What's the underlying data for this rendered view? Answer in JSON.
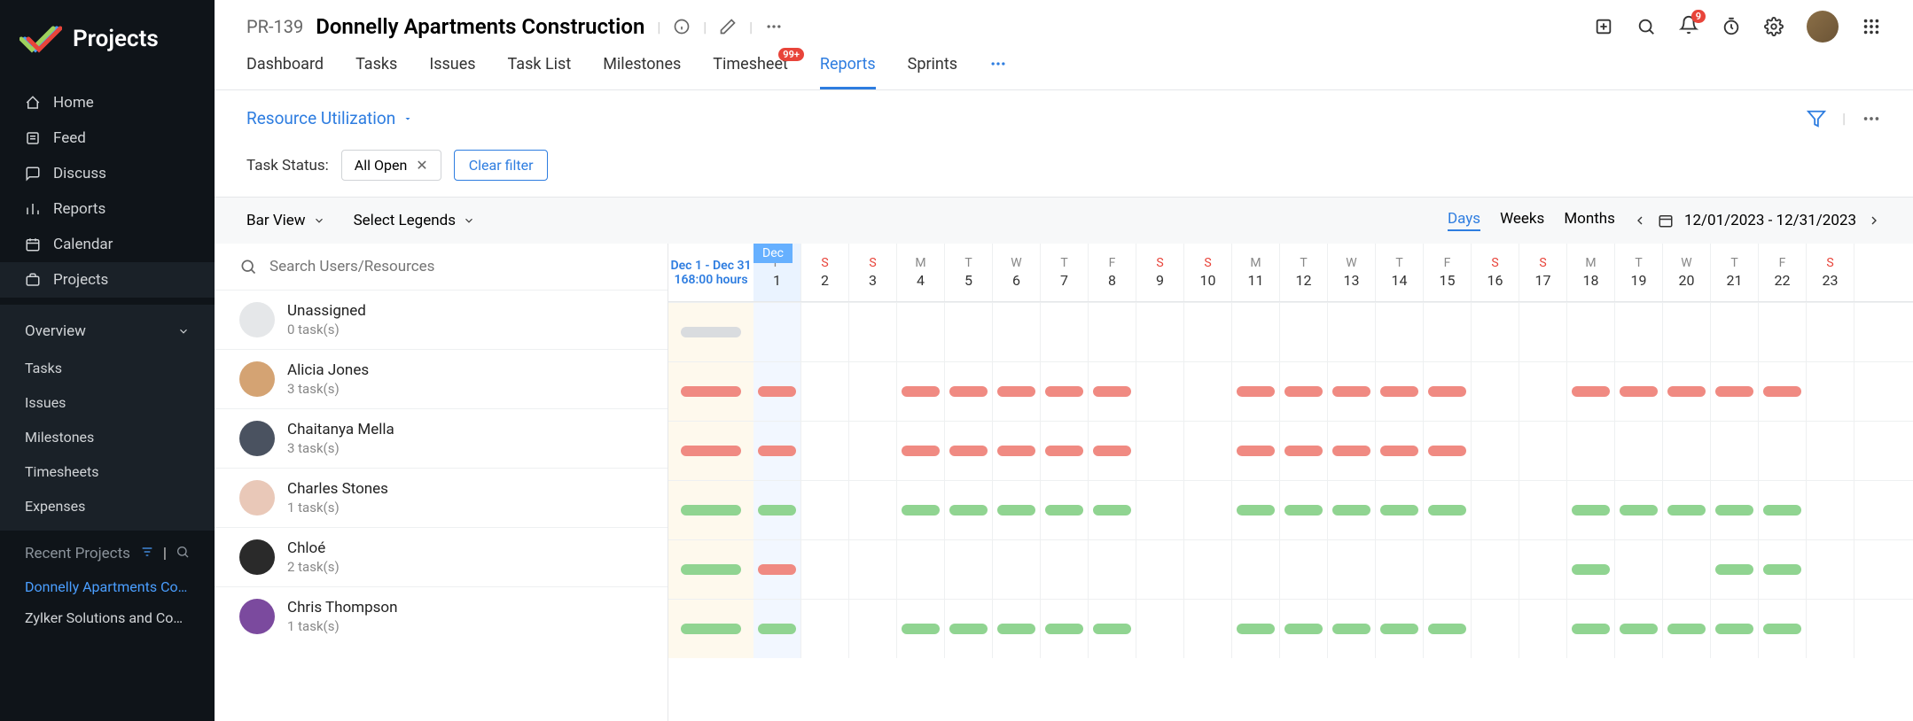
{
  "app": {
    "name": "Projects"
  },
  "sidebar": {
    "items": [
      {
        "label": "Home"
      },
      {
        "label": "Feed"
      },
      {
        "label": "Discuss"
      },
      {
        "label": "Reports"
      },
      {
        "label": "Calendar"
      },
      {
        "label": "Projects"
      }
    ],
    "overview": {
      "label": "Overview",
      "items": [
        {
          "label": "Tasks"
        },
        {
          "label": "Issues"
        },
        {
          "label": "Milestones"
        },
        {
          "label": "Timesheets"
        },
        {
          "label": "Expenses"
        }
      ]
    },
    "recent": {
      "label": "Recent Projects",
      "items": [
        {
          "label": "Donnelly Apartments Cons",
          "active": true
        },
        {
          "label": "Zylker Solutions and Constr",
          "active": false
        }
      ]
    }
  },
  "header": {
    "project_code": "PR-139",
    "project_title": "Donnelly Apartments Construction",
    "notification_count": "9"
  },
  "tabs": [
    {
      "label": "Dashboard"
    },
    {
      "label": "Tasks"
    },
    {
      "label": "Issues"
    },
    {
      "label": "Task List"
    },
    {
      "label": "Milestones"
    },
    {
      "label": "Timesheet",
      "badge": "99+"
    },
    {
      "label": "Reports",
      "active": true
    },
    {
      "label": "Sprints"
    }
  ],
  "report": {
    "selector_label": "Resource Utilization"
  },
  "filter": {
    "label": "Task Status:",
    "chip": "All Open",
    "clear_label": "Clear filter"
  },
  "toolbar": {
    "bar_view": "Bar View",
    "legends": "Select Legends",
    "view_options": [
      "Days",
      "Weeks",
      "Months"
    ],
    "date_range": "12/01/2023  -  12/31/2023"
  },
  "search": {
    "placeholder": "Search Users/Resources"
  },
  "summary": {
    "range": "Dec 1 - Dec 31",
    "hours": "168:00 hours",
    "month": "Dec"
  },
  "calendar": {
    "days": [
      {
        "dow": "F",
        "num": "1",
        "weekend": false,
        "today": true
      },
      {
        "dow": "S",
        "num": "2",
        "weekend": true
      },
      {
        "dow": "S",
        "num": "3",
        "weekend": true
      },
      {
        "dow": "M",
        "num": "4"
      },
      {
        "dow": "T",
        "num": "5"
      },
      {
        "dow": "W",
        "num": "6"
      },
      {
        "dow": "T",
        "num": "7"
      },
      {
        "dow": "F",
        "num": "8"
      },
      {
        "dow": "S",
        "num": "9",
        "weekend": true
      },
      {
        "dow": "S",
        "num": "10",
        "weekend": true
      },
      {
        "dow": "M",
        "num": "11"
      },
      {
        "dow": "T",
        "num": "12"
      },
      {
        "dow": "W",
        "num": "13"
      },
      {
        "dow": "T",
        "num": "14"
      },
      {
        "dow": "F",
        "num": "15"
      },
      {
        "dow": "S",
        "num": "16",
        "weekend": true
      },
      {
        "dow": "S",
        "num": "17",
        "weekend": true
      },
      {
        "dow": "M",
        "num": "18"
      },
      {
        "dow": "T",
        "num": "19"
      },
      {
        "dow": "W",
        "num": "20"
      },
      {
        "dow": "T",
        "num": "21"
      },
      {
        "dow": "F",
        "num": "22"
      },
      {
        "dow": "S",
        "num": "23",
        "weekend": true
      }
    ]
  },
  "resources": [
    {
      "name": "Unassigned",
      "count": "0 task(s)",
      "avatar_color": "#e5e7e9",
      "summary_bar": "gray",
      "bars": [
        "",
        "",
        "",
        "",
        "",
        "",
        "",
        "",
        "",
        "",
        "",
        "",
        "",
        "",
        "",
        "",
        "",
        "",
        "",
        "",
        "",
        "",
        ""
      ]
    },
    {
      "name": "Alicia Jones",
      "count": "3 task(s)",
      "avatar_color": "#d4a373",
      "summary_bar": "red",
      "bars": [
        "red",
        "",
        "",
        "red",
        "red",
        "red",
        "red",
        "red",
        "",
        "",
        "red",
        "red",
        "red",
        "red",
        "red",
        "",
        "",
        "red",
        "red",
        "red",
        "red",
        "red",
        ""
      ]
    },
    {
      "name": "Chaitanya Mella",
      "count": "3 task(s)",
      "avatar_color": "#4a5260",
      "summary_bar": "red",
      "bars": [
        "red",
        "",
        "",
        "red",
        "red",
        "red",
        "red",
        "red",
        "",
        "",
        "red",
        "red",
        "red",
        "red",
        "red",
        "",
        "",
        "",
        "",
        "",
        "",
        "",
        ""
      ]
    },
    {
      "name": "Charles Stones",
      "count": "1 task(s)",
      "avatar_color": "#e9c8b8",
      "summary_bar": "green",
      "bars": [
        "green",
        "",
        "",
        "green",
        "green",
        "green",
        "green",
        "green",
        "",
        "",
        "green",
        "green",
        "green",
        "green",
        "green",
        "",
        "",
        "green",
        "green",
        "green",
        "green",
        "green",
        ""
      ]
    },
    {
      "name": "Chloé",
      "count": "2 task(s)",
      "avatar_color": "#2a2a2a",
      "summary_bar": "green",
      "bars": [
        "red",
        "",
        "",
        "",
        "",
        "",
        "",
        "",
        "",
        "",
        "",
        "",
        "",
        "",
        "",
        "",
        "",
        "green",
        "",
        "",
        "green",
        "green",
        ""
      ]
    },
    {
      "name": "Chris Thompson",
      "count": "1 task(s)",
      "avatar_color": "#7b4a9e",
      "summary_bar": "green",
      "bars": [
        "green",
        "",
        "",
        "green",
        "green",
        "green",
        "green",
        "green",
        "",
        "",
        "green",
        "green",
        "green",
        "green",
        "green",
        "",
        "",
        "green",
        "green",
        "green",
        "green",
        "green",
        ""
      ]
    }
  ],
  "colors": {
    "red_bar": "#f08a82",
    "green_bar": "#90d491",
    "gray_bar": "#d9dcdf",
    "accent": "#2e7de0",
    "sidebar_bg": "#0f1419"
  }
}
